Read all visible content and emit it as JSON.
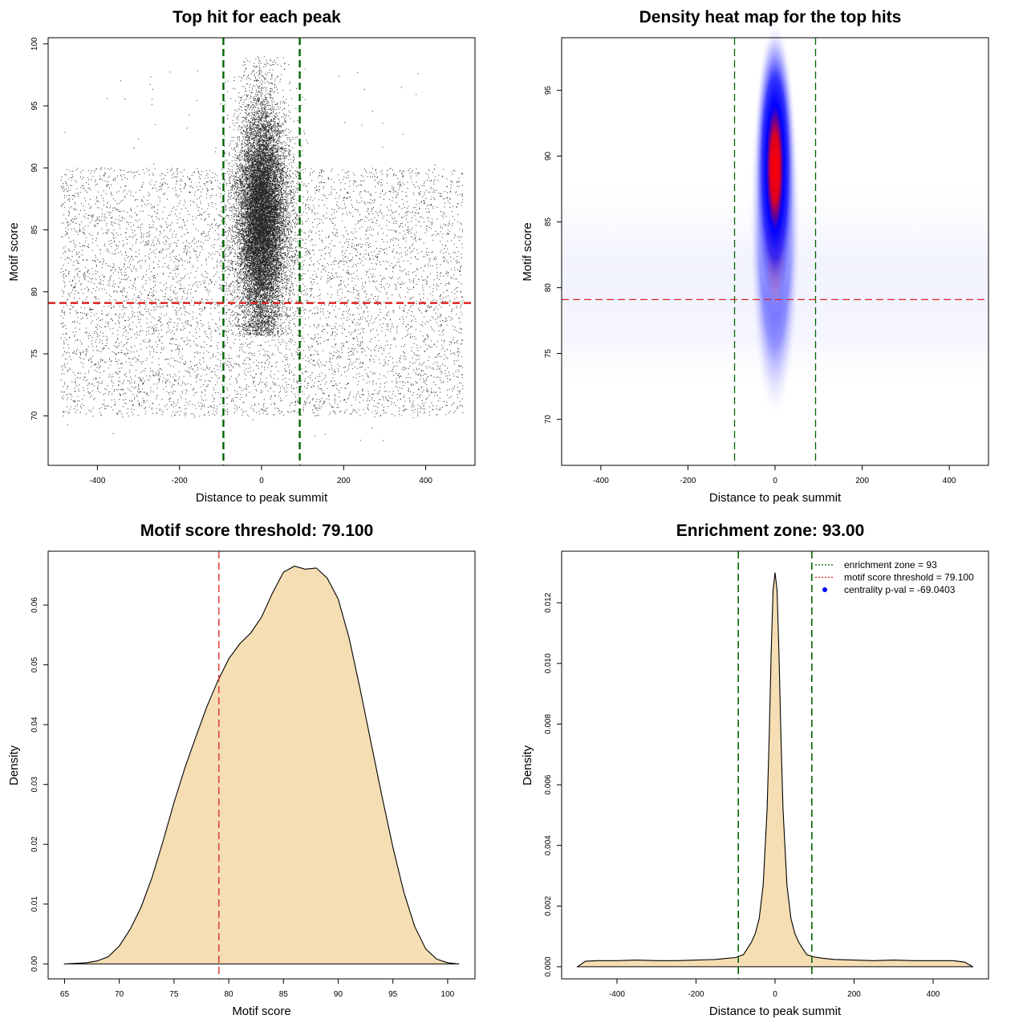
{
  "panels": [
    {
      "id": "scatter",
      "title": "Top hit for each peak",
      "xlabel": "Distance to peak summit",
      "ylabel": "Motif score"
    },
    {
      "id": "heatmap",
      "title": "Density heat map for the top hits",
      "xlabel": "Distance to peak summit",
      "ylabel": "Motif score"
    },
    {
      "id": "score-density",
      "title": "Motif score threshold: 79.100",
      "xlabel": "Motif score",
      "ylabel": "Density"
    },
    {
      "id": "distance-density",
      "title": "Enrichment zone: 93.00",
      "xlabel": "Distance to peak summit",
      "ylabel": "Density"
    }
  ],
  "chart_data": [
    {
      "type": "scatter",
      "title": "Top hit for each peak",
      "xlabel": "Distance to peak summit",
      "ylabel": "Motif score",
      "xlim": [
        -520,
        520
      ],
      "ylim": [
        66,
        100.5
      ],
      "xticks": [
        -400,
        -200,
        0,
        200,
        400
      ],
      "yticks": [
        70,
        75,
        80,
        85,
        90,
        95,
        100
      ],
      "background_score_range": [
        70,
        90
      ],
      "central_cluster": {
        "x_center": 0,
        "x_sd": 30,
        "y_center": 86,
        "y_sd": 4.5,
        "y_range": [
          76.5,
          99
        ]
      },
      "reference_lines": [
        {
          "orientation": "vertical",
          "value": -93,
          "color": "#006400",
          "style": "dashed"
        },
        {
          "orientation": "vertical",
          "value": 93,
          "color": "#006400",
          "style": "dashed"
        },
        {
          "orientation": "horizontal",
          "value": 79.1,
          "color": "#dd2222",
          "style": "dashed"
        }
      ],
      "point_color": "#000000"
    },
    {
      "type": "heatmap",
      "title": "Density heat map for the top hits",
      "xlabel": "Distance to peak summit",
      "ylabel": "Motif score",
      "xlim": [
        -490,
        490
      ],
      "ylim": [
        66.5,
        99
      ],
      "xticks": [
        -400,
        -200,
        0,
        200,
        400
      ],
      "yticks": [
        70,
        75,
        80,
        85,
        90,
        95
      ],
      "hotspot": {
        "x": 0,
        "y": 88.5
      },
      "color_scale": [
        "#ffffff",
        "#0000ff",
        "#ff0000"
      ],
      "reference_lines": [
        {
          "orientation": "vertical",
          "value": -93,
          "color": "#006400",
          "style": "dashed"
        },
        {
          "orientation": "vertical",
          "value": 93,
          "color": "#006400",
          "style": "dashed"
        },
        {
          "orientation": "horizontal",
          "value": 79.1,
          "color": "#dd2222",
          "style": "dashed"
        }
      ]
    },
    {
      "type": "area",
      "title": "Motif score threshold: 79.100",
      "xlabel": "Motif score",
      "ylabel": "Density",
      "xlim": [
        63.5,
        102.5
      ],
      "ylim": [
        -0.0025,
        0.069
      ],
      "xticks": [
        65,
        70,
        75,
        80,
        85,
        90,
        95,
        100
      ],
      "yticks": [
        0.0,
        0.01,
        0.02,
        0.03,
        0.04,
        0.05,
        0.06
      ],
      "ytick_labels": [
        "0.00",
        "0.01",
        "0.02",
        "0.03",
        "0.04",
        "0.05",
        "0.06"
      ],
      "fill": "#f5deb3",
      "x": [
        65,
        67,
        68,
        69,
        70,
        71,
        72,
        73,
        74,
        75,
        76,
        77,
        78,
        79,
        80,
        81,
        82,
        83,
        84,
        85,
        86,
        87,
        88,
        89,
        90,
        91,
        92,
        93,
        94,
        95,
        96,
        97,
        98,
        99,
        100,
        101
      ],
      "y": [
        0.0,
        0.0002,
        0.0005,
        0.0012,
        0.003,
        0.0058,
        0.0095,
        0.0145,
        0.0205,
        0.027,
        0.0328,
        0.038,
        0.043,
        0.0473,
        0.051,
        0.0535,
        0.0553,
        0.058,
        0.062,
        0.0655,
        0.0665,
        0.066,
        0.0662,
        0.0645,
        0.061,
        0.0545,
        0.046,
        0.037,
        0.028,
        0.0195,
        0.012,
        0.0062,
        0.0025,
        0.0008,
        0.0002,
        0.0
      ],
      "reference_lines": [
        {
          "orientation": "vertical",
          "value": 79.1,
          "color": "#dd2222",
          "style": "dashed"
        }
      ]
    },
    {
      "type": "area",
      "title": "Enrichment zone: 93.00",
      "xlabel": "Distance to peak summit",
      "ylabel": "Density",
      "xlim": [
        -540,
        540
      ],
      "ylim": [
        -0.0004,
        0.0137
      ],
      "xticks": [
        -400,
        -200,
        0,
        200,
        400
      ],
      "yticks": [
        0.0,
        0.002,
        0.004,
        0.006,
        0.008,
        0.01,
        0.012
      ],
      "ytick_labels": [
        "0.000",
        "0.002",
        "0.004",
        "0.006",
        "0.008",
        "0.010",
        "0.012"
      ],
      "fill": "#f5deb3",
      "x": [
        -500,
        -480,
        -450,
        -400,
        -350,
        -300,
        -250,
        -200,
        -150,
        -120,
        -100,
        -80,
        -60,
        -50,
        -40,
        -30,
        -20,
        -15,
        -10,
        -5,
        0,
        5,
        10,
        15,
        20,
        30,
        40,
        50,
        60,
        80,
        100,
        120,
        150,
        200,
        250,
        300,
        350,
        400,
        450,
        480,
        500
      ],
      "y": [
        0.0,
        0.00018,
        0.0002,
        0.0002,
        0.00022,
        0.0002,
        0.0002,
        0.00022,
        0.00024,
        0.00028,
        0.0003,
        0.0004,
        0.0008,
        0.0011,
        0.0016,
        0.0027,
        0.0052,
        0.0075,
        0.0103,
        0.0124,
        0.013,
        0.0124,
        0.0103,
        0.0075,
        0.0052,
        0.0027,
        0.0016,
        0.0011,
        0.0008,
        0.0004,
        0.00032,
        0.00028,
        0.00024,
        0.00022,
        0.0002,
        0.00022,
        0.0002,
        0.0002,
        0.0002,
        0.00015,
        0.0
      ],
      "legend": {
        "placement": "top-right",
        "entries": [
          {
            "label": "enrichment zone = 93",
            "color": "#006400",
            "marker": "line"
          },
          {
            "label": "motif score threshold = 79.100",
            "color": "#dd2222",
            "marker": "line"
          },
          {
            "label": "centrality p-val = -69.0403",
            "color": "#0000ff",
            "marker": "point"
          }
        ]
      },
      "reference_lines": [
        {
          "orientation": "vertical",
          "value": -93,
          "color": "#006400",
          "style": "dashed"
        },
        {
          "orientation": "vertical",
          "value": 93,
          "color": "#006400",
          "style": "dashed"
        }
      ]
    }
  ]
}
